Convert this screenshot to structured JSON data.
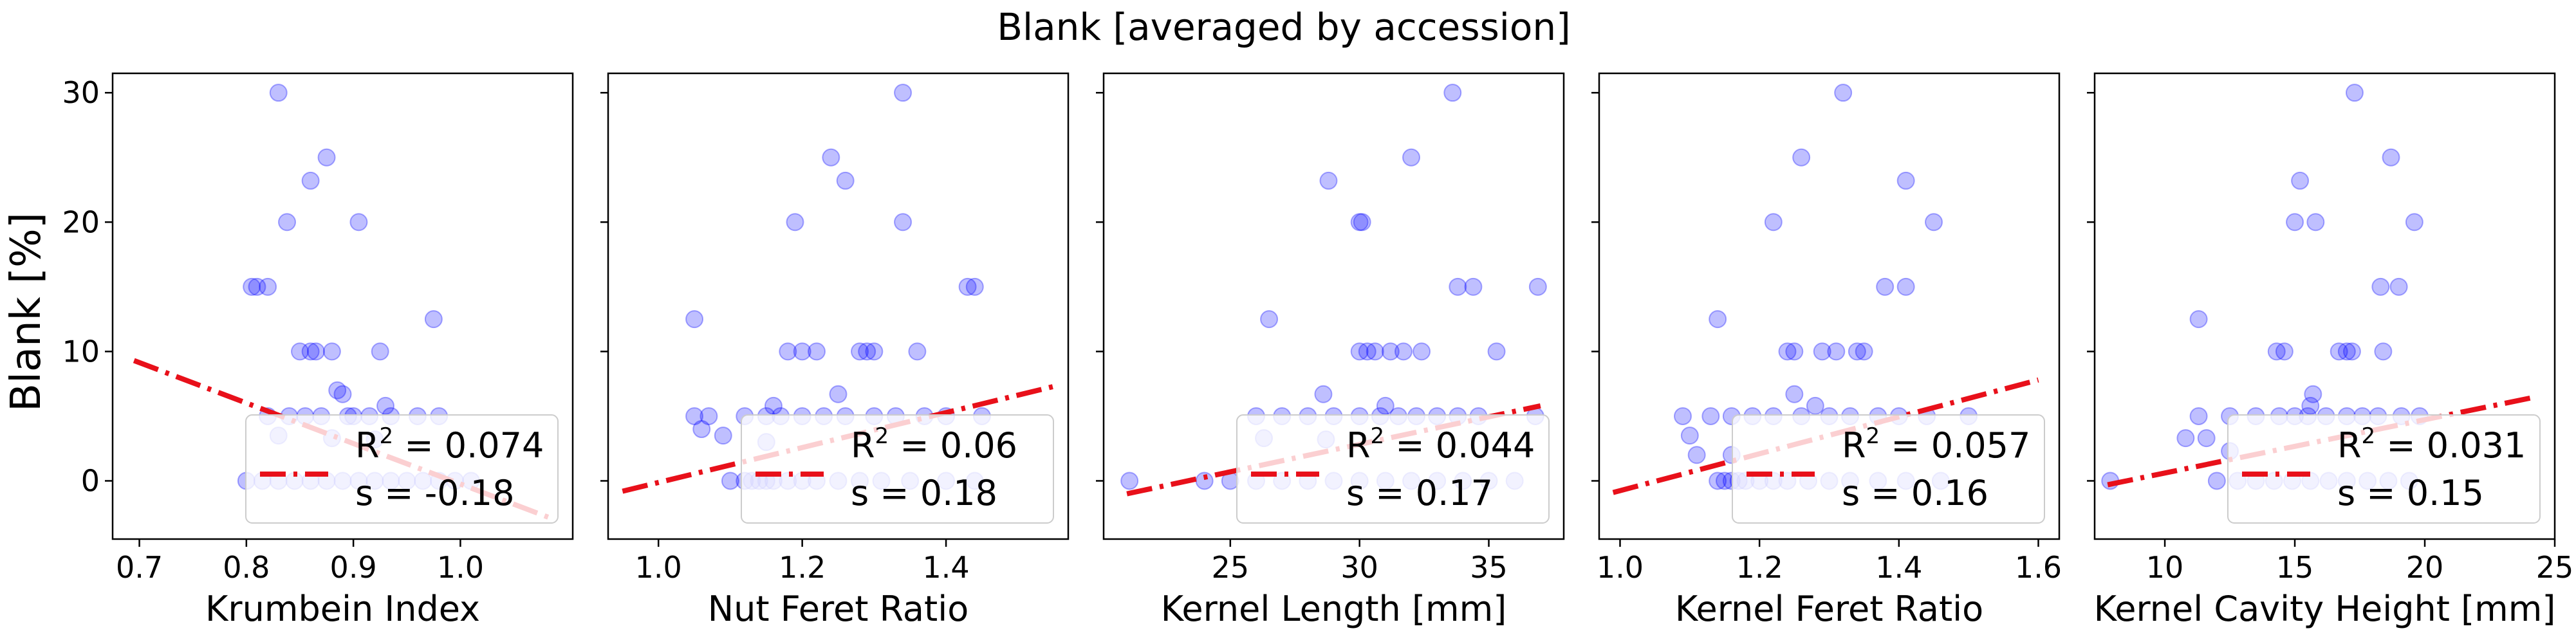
{
  "chart_data": {
    "suptitle": "Blank [averaged by accession]",
    "ylabel": "Blank [%]",
    "ylim": [
      -4.5,
      31.5
    ],
    "yticks": [
      0,
      10,
      20,
      30
    ],
    "point_color": "#0000ff",
    "fit_color": "#e8101a",
    "panels": [
      {
        "type": "scatter",
        "xlabel": "Krumbein Index",
        "xlim": [
          0.675,
          1.105
        ],
        "xticks": [
          0.7,
          0.8,
          0.9,
          1.0
        ],
        "x_tick_labels": [
          "0.7",
          "0.8",
          "0.9",
          "1.0"
        ],
        "fit": {
          "x": [
            0.695,
            1.085
          ],
          "y": [
            9.3,
            -2.9
          ]
        },
        "legend": {
          "r2": "0.074",
          "s": "-0.18"
        },
        "points": [
          [
            0.83,
            30
          ],
          [
            0.875,
            25
          ],
          [
            0.86,
            23.2
          ],
          [
            0.838,
            20
          ],
          [
            0.905,
            20
          ],
          [
            0.81,
            15
          ],
          [
            0.805,
            15
          ],
          [
            0.82,
            15
          ],
          [
            0.975,
            12.5
          ],
          [
            0.85,
            10
          ],
          [
            0.86,
            10
          ],
          [
            0.865,
            10
          ],
          [
            0.88,
            10
          ],
          [
            0.925,
            10
          ],
          [
            0.885,
            7
          ],
          [
            0.89,
            6.7
          ],
          [
            0.93,
            5.8
          ],
          [
            0.82,
            5
          ],
          [
            0.84,
            5
          ],
          [
            0.855,
            5
          ],
          [
            0.87,
            5
          ],
          [
            0.895,
            5
          ],
          [
            0.9,
            5
          ],
          [
            0.915,
            5
          ],
          [
            0.935,
            5
          ],
          [
            0.96,
            5
          ],
          [
            0.98,
            5
          ],
          [
            0.83,
            3.5
          ],
          [
            0.88,
            3.3
          ],
          [
            0.92,
            3.2
          ],
          [
            0.8,
            0
          ],
          [
            0.815,
            0
          ],
          [
            0.83,
            0
          ],
          [
            0.845,
            0
          ],
          [
            0.86,
            0
          ],
          [
            0.875,
            0
          ],
          [
            0.89,
            0
          ],
          [
            0.905,
            0
          ],
          [
            0.92,
            0
          ],
          [
            0.935,
            0
          ],
          [
            0.95,
            0
          ],
          [
            0.965,
            0
          ],
          [
            0.98,
            0
          ],
          [
            0.995,
            0
          ],
          [
            1.01,
            0
          ]
        ]
      },
      {
        "type": "scatter",
        "xlabel": "Nut Feret Ratio",
        "xlim": [
          0.93,
          1.57
        ],
        "xticks": [
          1.0,
          1.2,
          1.4
        ],
        "x_tick_labels": [
          "1.0",
          "1.2",
          "1.4"
        ],
        "fit": {
          "x": [
            0.95,
            1.55
          ],
          "y": [
            -0.8,
            7.3
          ]
        },
        "legend": {
          "r2": "0.06",
          "s": "0.18"
        },
        "points": [
          [
            1.34,
            30
          ],
          [
            1.24,
            25
          ],
          [
            1.26,
            23.2
          ],
          [
            1.19,
            20
          ],
          [
            1.34,
            20
          ],
          [
            1.43,
            15
          ],
          [
            1.44,
            15
          ],
          [
            1.05,
            12.5
          ],
          [
            1.18,
            10
          ],
          [
            1.2,
            10
          ],
          [
            1.22,
            10
          ],
          [
            1.28,
            10
          ],
          [
            1.29,
            10
          ],
          [
            1.3,
            10
          ],
          [
            1.36,
            10
          ],
          [
            1.25,
            6.7
          ],
          [
            1.16,
            5.8
          ],
          [
            1.05,
            5
          ],
          [
            1.07,
            5
          ],
          [
            1.12,
            5
          ],
          [
            1.15,
            5
          ],
          [
            1.17,
            5
          ],
          [
            1.2,
            5
          ],
          [
            1.23,
            5
          ],
          [
            1.26,
            5
          ],
          [
            1.3,
            5
          ],
          [
            1.33,
            5
          ],
          [
            1.37,
            5
          ],
          [
            1.4,
            5
          ],
          [
            1.45,
            5
          ],
          [
            1.06,
            4
          ],
          [
            1.09,
            3.5
          ],
          [
            1.15,
            3
          ],
          [
            1.1,
            0
          ],
          [
            1.12,
            0
          ],
          [
            1.13,
            0
          ],
          [
            1.14,
            0
          ],
          [
            1.15,
            0
          ],
          [
            1.16,
            0
          ],
          [
            1.18,
            0
          ],
          [
            1.2,
            0
          ],
          [
            1.22,
            0
          ],
          [
            1.25,
            0
          ],
          [
            1.28,
            0
          ],
          [
            1.31,
            0
          ],
          [
            1.35,
            0
          ],
          [
            1.4,
            0
          ],
          [
            1.44,
            0
          ]
        ]
      },
      {
        "type": "scatter",
        "xlabel": "Kernel Length [mm]",
        "xlim": [
          20.1,
          37.9
        ],
        "xticks": [
          25,
          30,
          35
        ],
        "x_tick_labels": [
          "25",
          "30",
          "35"
        ],
        "fit": {
          "x": [
            21,
            37
          ],
          "y": [
            -1,
            5.8
          ]
        },
        "legend": {
          "r2": "0.044",
          "s": "0.17"
        },
        "points": [
          [
            33.6,
            30
          ],
          [
            32,
            25
          ],
          [
            28.8,
            23.2
          ],
          [
            30,
            20
          ],
          [
            30.1,
            20
          ],
          [
            33.8,
            15
          ],
          [
            34.4,
            15
          ],
          [
            36.9,
            15
          ],
          [
            26.5,
            12.5
          ],
          [
            30,
            10
          ],
          [
            30.3,
            10
          ],
          [
            30.6,
            10
          ],
          [
            31.2,
            10
          ],
          [
            31.7,
            10
          ],
          [
            32.4,
            10
          ],
          [
            35.3,
            10
          ],
          [
            28.6,
            6.7
          ],
          [
            31,
            5.8
          ],
          [
            26,
            5
          ],
          [
            27,
            5
          ],
          [
            28,
            5
          ],
          [
            29,
            5
          ],
          [
            30,
            5
          ],
          [
            30.8,
            5
          ],
          [
            31.5,
            5
          ],
          [
            32.2,
            5
          ],
          [
            33,
            5
          ],
          [
            33.8,
            5
          ],
          [
            34.6,
            5
          ],
          [
            36.8,
            5
          ],
          [
            26.3,
            3.3
          ],
          [
            28.7,
            3.2
          ],
          [
            21.1,
            0
          ],
          [
            24,
            0
          ],
          [
            25,
            0
          ],
          [
            26,
            0
          ],
          [
            27,
            0
          ],
          [
            28,
            0
          ],
          [
            29,
            0
          ],
          [
            30,
            0
          ],
          [
            31,
            0
          ],
          [
            32,
            0
          ],
          [
            33,
            0
          ],
          [
            34,
            0
          ],
          [
            35,
            0
          ],
          [
            36,
            0
          ]
        ]
      },
      {
        "type": "scatter",
        "xlabel": "Kernel Feret Ratio",
        "xlim": [
          0.97,
          1.63
        ],
        "xticks": [
          1.0,
          1.2,
          1.4,
          1.6
        ],
        "x_tick_labels": [
          "1.0",
          "1.2",
          "1.4",
          "1.6"
        ],
        "fit": {
          "x": [
            0.99,
            1.6
          ],
          "y": [
            -0.9,
            7.8
          ]
        },
        "legend": {
          "r2": "0.057",
          "s": "0.16"
        },
        "points": [
          [
            1.32,
            30
          ],
          [
            1.26,
            25
          ],
          [
            1.41,
            23.2
          ],
          [
            1.22,
            20
          ],
          [
            1.45,
            20
          ],
          [
            1.38,
            15
          ],
          [
            1.41,
            15
          ],
          [
            1.14,
            12.5
          ],
          [
            1.24,
            10
          ],
          [
            1.25,
            10
          ],
          [
            1.29,
            10
          ],
          [
            1.31,
            10
          ],
          [
            1.34,
            10
          ],
          [
            1.35,
            10
          ],
          [
            1.25,
            6.7
          ],
          [
            1.28,
            5.8
          ],
          [
            1.09,
            5
          ],
          [
            1.13,
            5
          ],
          [
            1.16,
            5
          ],
          [
            1.19,
            5
          ],
          [
            1.22,
            5
          ],
          [
            1.26,
            5
          ],
          [
            1.3,
            5
          ],
          [
            1.33,
            5
          ],
          [
            1.37,
            5
          ],
          [
            1.4,
            5
          ],
          [
            1.44,
            5
          ],
          [
            1.5,
            5
          ],
          [
            1.1,
            3.5
          ],
          [
            1.11,
            2
          ],
          [
            1.16,
            2
          ],
          [
            1.14,
            0
          ],
          [
            1.15,
            0
          ],
          [
            1.16,
            0
          ],
          [
            1.17,
            0
          ],
          [
            1.18,
            0
          ],
          [
            1.2,
            0
          ],
          [
            1.22,
            0
          ],
          [
            1.24,
            0
          ],
          [
            1.27,
            0
          ],
          [
            1.3,
            0
          ],
          [
            1.33,
            0
          ],
          [
            1.37,
            0
          ],
          [
            1.41,
            0
          ],
          [
            1.46,
            0
          ]
        ]
      },
      {
        "type": "scatter",
        "xlabel": "Kernel Cavity Height [mm]",
        "xlim": [
          7.3,
          25.0
        ],
        "xticks": [
          10,
          15,
          20,
          25
        ],
        "x_tick_labels": [
          "10",
          "15",
          "20",
          "25"
        ],
        "fit": {
          "x": [
            7.8,
            24.3
          ],
          "y": [
            -0.3,
            6.5
          ]
        },
        "legend": {
          "r2": "0.031",
          "s": "0.15"
        },
        "points": [
          [
            17.3,
            30
          ],
          [
            18.7,
            25
          ],
          [
            15.2,
            23.2
          ],
          [
            15,
            20
          ],
          [
            15.8,
            20
          ],
          [
            19.6,
            20
          ],
          [
            18.3,
            15
          ],
          [
            19,
            15
          ],
          [
            11.3,
            12.5
          ],
          [
            14.3,
            10
          ],
          [
            14.6,
            10
          ],
          [
            16.7,
            10
          ],
          [
            17,
            10
          ],
          [
            17.2,
            10
          ],
          [
            18.4,
            10
          ],
          [
            15.7,
            6.7
          ],
          [
            15.6,
            5.8
          ],
          [
            11.3,
            5
          ],
          [
            12.5,
            5
          ],
          [
            13.5,
            5
          ],
          [
            14.4,
            5
          ],
          [
            15,
            5
          ],
          [
            15.5,
            5
          ],
          [
            16.2,
            5
          ],
          [
            17,
            5
          ],
          [
            17.6,
            5
          ],
          [
            18.2,
            5
          ],
          [
            19.1,
            5
          ],
          [
            19.8,
            5
          ],
          [
            10.8,
            3.3
          ],
          [
            11.6,
            3.3
          ],
          [
            12.5,
            2.3
          ],
          [
            7.9,
            0
          ],
          [
            12,
            0
          ],
          [
            12.8,
            0
          ],
          [
            13.5,
            0
          ],
          [
            14.2,
            0
          ],
          [
            14.9,
            0
          ],
          [
            15.6,
            0
          ],
          [
            16.3,
            0
          ],
          [
            17,
            0
          ],
          [
            17.8,
            0
          ],
          [
            18.6,
            0
          ],
          [
            19.4,
            0
          ]
        ]
      }
    ]
  }
}
